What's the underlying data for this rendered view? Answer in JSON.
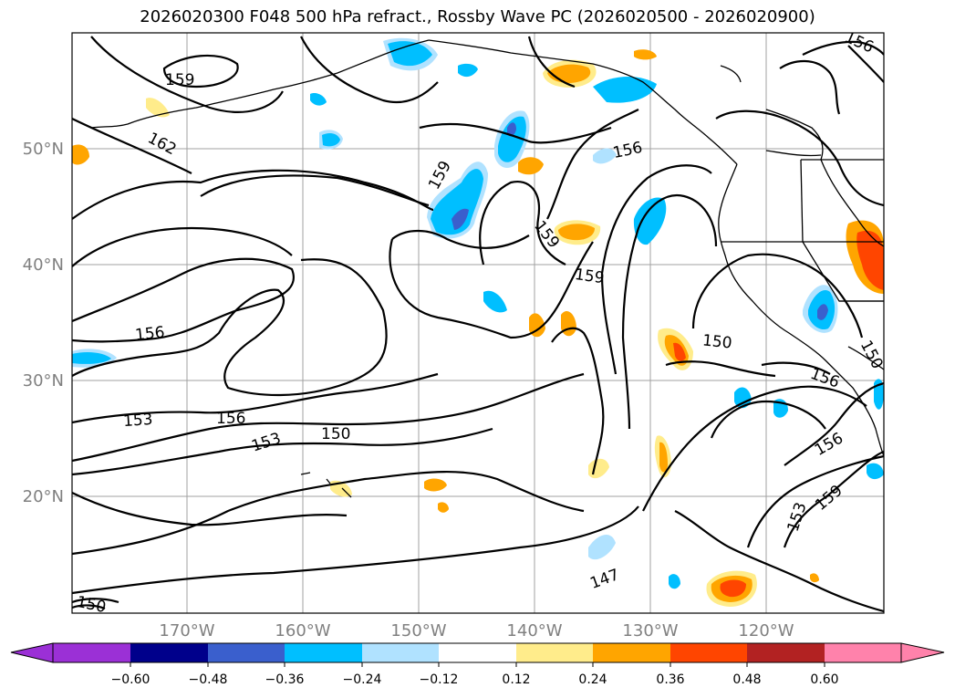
{
  "title": "2026020300 F048 500 hPa refract., Rossby Wave PC (2026020500 - 2026020900)",
  "map": {
    "lat_labels": [
      "50°N",
      "40°N",
      "30°N",
      "20°N"
    ],
    "lon_labels": [
      "170°W",
      "160°W",
      "150°W",
      "140°W",
      "130°W",
      "120°W"
    ],
    "contour_labels": [
      "159",
      "162",
      "159",
      "156",
      "159",
      "159",
      "156",
      "153",
      "156",
      "153",
      "150",
      "150",
      "156",
      "156",
      "153",
      "159",
      "147",
      "150",
      "150",
      "156"
    ]
  },
  "colorbar": {
    "ticks": [
      "−0.60",
      "−0.48",
      "−0.36",
      "−0.24",
      "−0.12",
      "0.12",
      "0.24",
      "0.36",
      "0.48",
      "0.60"
    ],
    "colors": [
      "#9b30d6",
      "#00008b",
      "#3a5fcd",
      "#00bfff",
      "#b0e2ff",
      "#ffffff",
      "#ffec8b",
      "#ffa500",
      "#ff4500",
      "#b22222",
      "#ff82ab"
    ]
  },
  "colors": {
    "contour": "#000000",
    "grid": "#a0a0a0",
    "coast": "#000000"
  }
}
